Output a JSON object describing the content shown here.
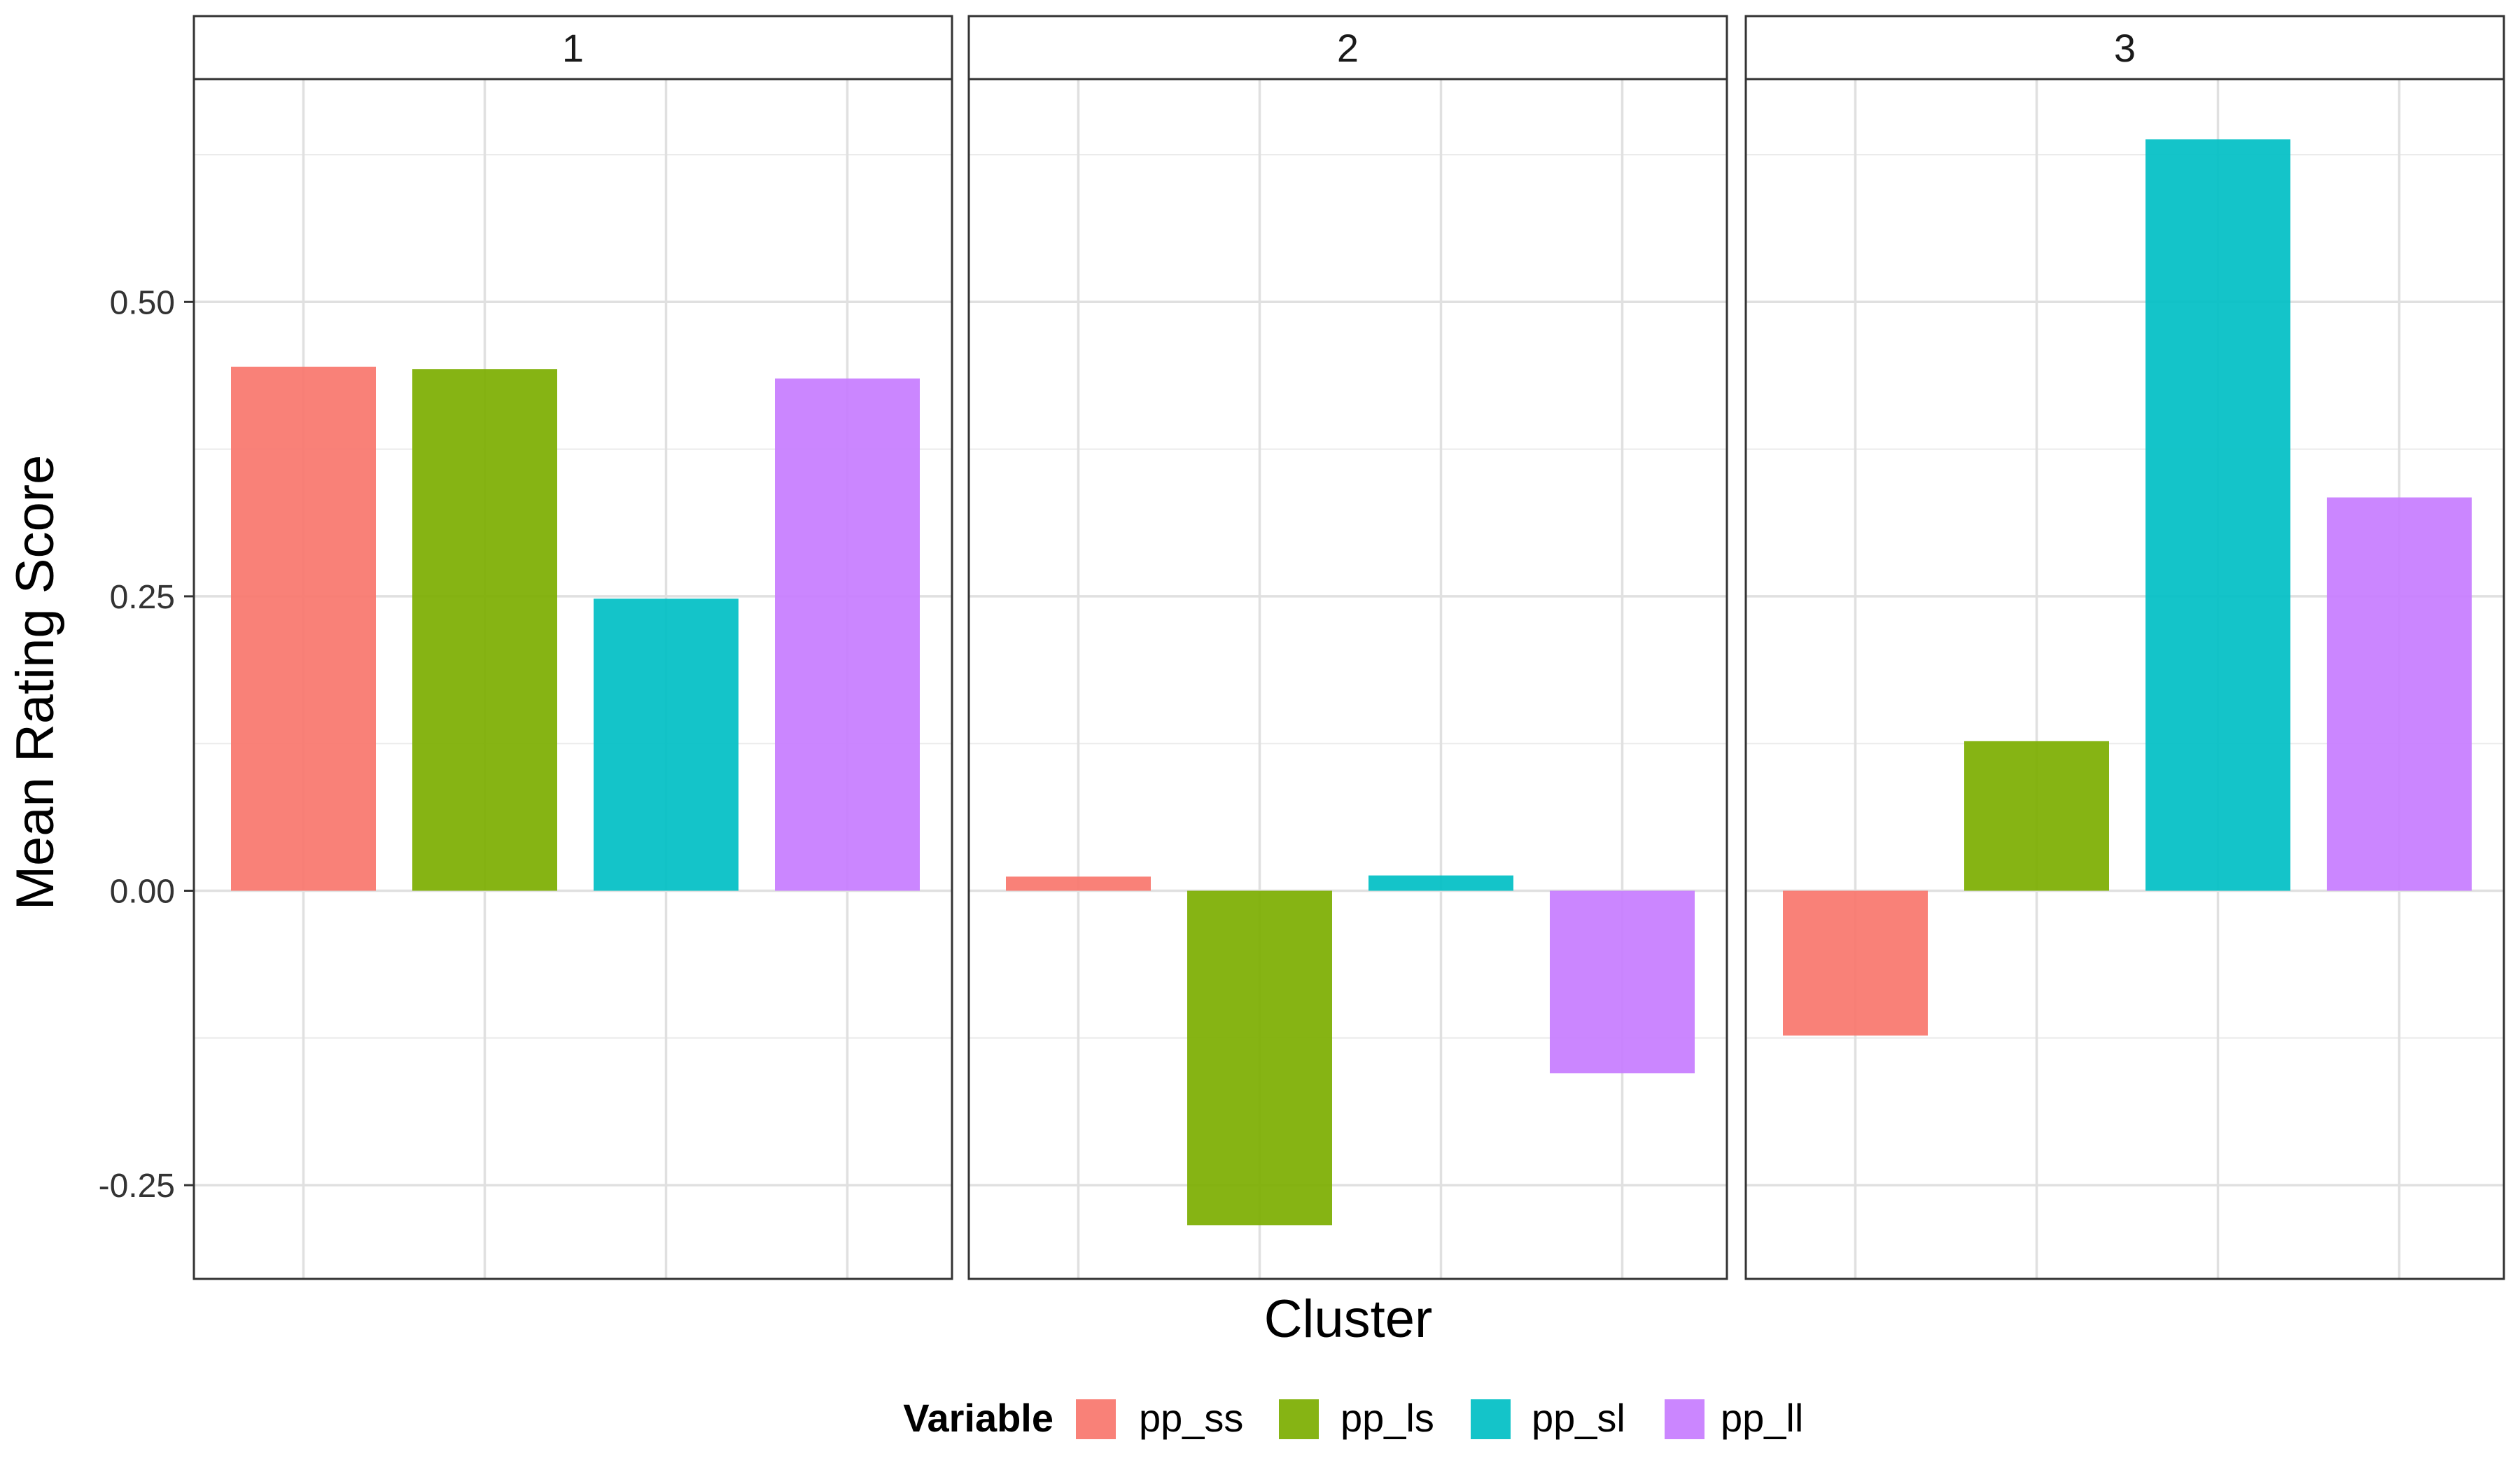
{
  "chart_data": {
    "type": "bar",
    "facet_label": "Cluster",
    "panels": [
      "1",
      "2",
      "3"
    ],
    "variables": [
      "pp_ss",
      "pp_ls",
      "pp_sl",
      "pp_ll"
    ],
    "series": [
      {
        "name": "pp_ss",
        "color": "#F8766D",
        "values": [
          0.445,
          0.012,
          -0.123
        ]
      },
      {
        "name": "pp_ls",
        "color": "#7CAE00",
        "values": [
          0.443,
          -0.284,
          0.127
        ]
      },
      {
        "name": "pp_sl",
        "color": "#00BFC4",
        "values": [
          0.248,
          0.013,
          0.638
        ]
      },
      {
        "name": "pp_ll",
        "color": "#C77CFF",
        "values": [
          0.435,
          -0.155,
          0.334
        ]
      }
    ],
    "xlabel": "Cluster",
    "ylabel": "Mean Rating Score",
    "ylim": [
      -0.33,
      0.75
    ],
    "yticks": [
      -0.25,
      0.0,
      0.25,
      0.5
    ],
    "ytick_labels": [
      "-0.25",
      "0.00",
      "0.25",
      "0.50"
    ],
    "grid": true,
    "legend": {
      "title": "Variable",
      "position": "bottom"
    }
  }
}
